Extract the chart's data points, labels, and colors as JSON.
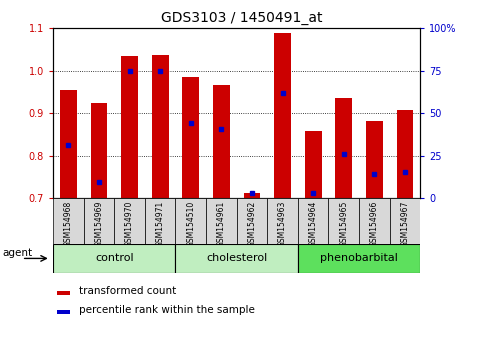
{
  "title": "GDS3103 / 1450491_at",
  "samples": [
    "GSM154968",
    "GSM154969",
    "GSM154970",
    "GSM154971",
    "GSM154510",
    "GSM154961",
    "GSM154962",
    "GSM154963",
    "GSM154964",
    "GSM154965",
    "GSM154966",
    "GSM154967"
  ],
  "bar_values": [
    0.955,
    0.925,
    1.035,
    1.037,
    0.985,
    0.967,
    0.713,
    1.09,
    0.858,
    0.937,
    0.882,
    0.908
  ],
  "blue_values": [
    0.825,
    0.738,
    1.0,
    1.0,
    0.878,
    0.862,
    0.713,
    0.948,
    0.713,
    0.805,
    0.758,
    0.762
  ],
  "baseline": 0.7,
  "ylim_left": [
    0.7,
    1.1
  ],
  "ylim_right": [
    0,
    100
  ],
  "yticks_left": [
    0.7,
    0.8,
    0.9,
    1.0,
    1.1
  ],
  "yticks_right": [
    0,
    25,
    50,
    75,
    100
  ],
  "ytick_labels_right": [
    "0",
    "25",
    "50",
    "75",
    "100%"
  ],
  "group_labels": [
    "control",
    "cholesterol",
    "phenobarbital"
  ],
  "group_starts": [
    0,
    4,
    8
  ],
  "group_ends": [
    3,
    7,
    11
  ],
  "group_colors": [
    "#c0eec0",
    "#c0eec0",
    "#5de05d"
  ],
  "bar_color": "#cc0000",
  "blue_color": "#0000cc",
  "bar_width": 0.55,
  "agent_label": "agent",
  "legend_label_red": "transformed count",
  "legend_label_blue": "percentile rank within the sample",
  "grid_lines": [
    0.8,
    0.9,
    1.0
  ],
  "bg_color": "#ffffff",
  "xticklabel_bg": "#d8d8d8",
  "title_fontsize": 10,
  "tick_fontsize": 7,
  "group_fontsize": 8,
  "legend_fontsize": 7.5
}
